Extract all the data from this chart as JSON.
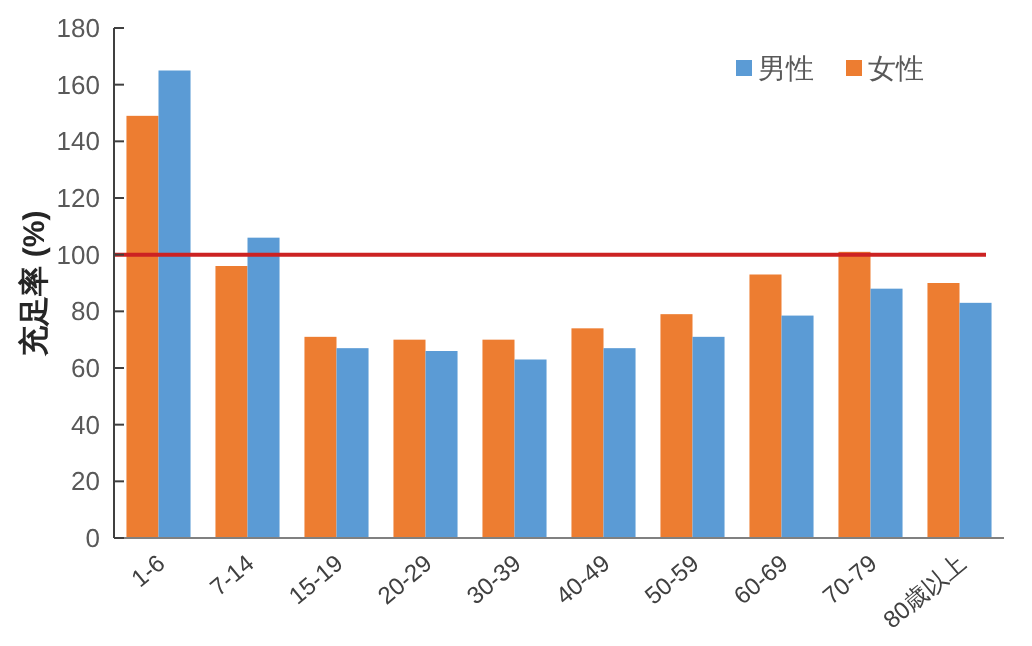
{
  "chart_data": {
    "type": "bar",
    "ylabel": "充足率 (%)",
    "categories": [
      "1-6",
      "7-14",
      "15-19",
      "20-29",
      "30-39",
      "40-49",
      "50-59",
      "60-69",
      "70-79",
      "80歳以上"
    ],
    "series": [
      {
        "name": "女性",
        "color": "#ed7d31",
        "values": [
          149,
          96,
          71,
          70,
          70,
          74,
          79,
          93,
          101,
          90
        ]
      },
      {
        "name": "男性",
        "color": "#5b9bd5",
        "values": [
          165,
          106,
          67,
          66,
          63,
          67,
          71,
          78.5,
          88,
          83
        ]
      }
    ],
    "ylim": [
      0,
      180
    ],
    "yticks": [
      0,
      20,
      40,
      60,
      80,
      100,
      120,
      140,
      160,
      180
    ],
    "ref_lines": [
      {
        "axis": "y",
        "value": 100,
        "color": "#cc2222"
      }
    ],
    "legend": "top right",
    "grid": false
  }
}
